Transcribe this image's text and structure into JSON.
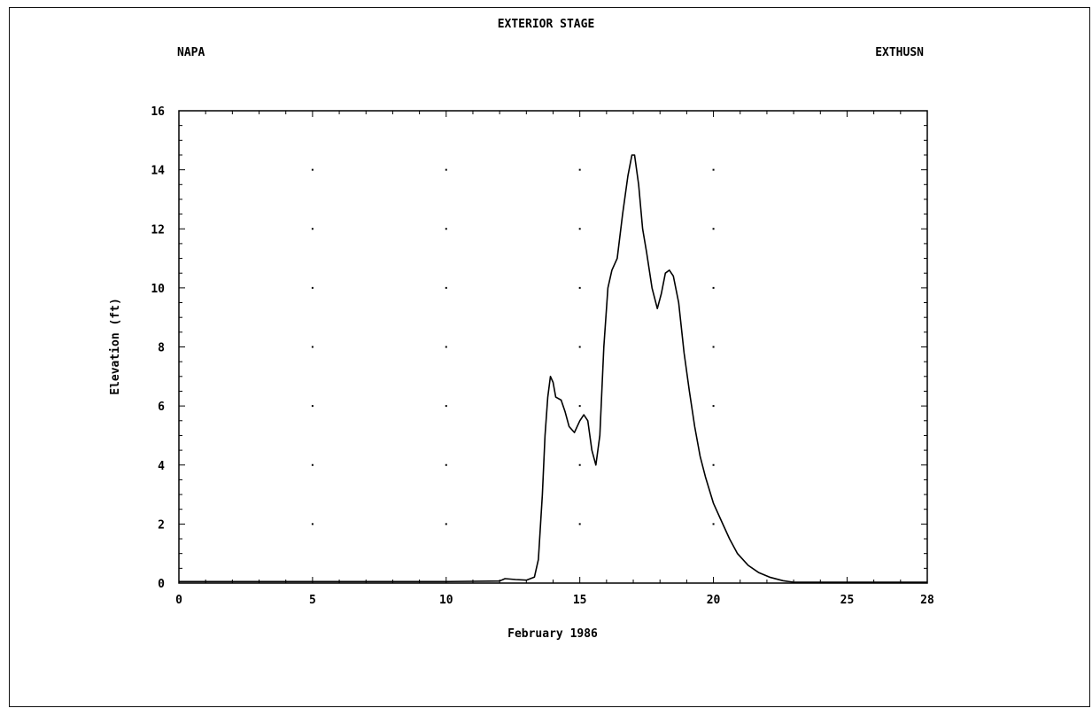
{
  "chart_data": {
    "type": "line",
    "title": "EXTERIOR STAGE",
    "location_label": "NAPA",
    "station_label": "EXTHUSN",
    "xlabel": "February 1986",
    "ylabel": "Elevation (ft)",
    "xlim": [
      0,
      28
    ],
    "ylim": [
      0,
      16
    ],
    "x_ticks": [
      "0",
      "5",
      "10",
      "15",
      "20",
      "25",
      "28"
    ],
    "y_ticks": [
      "0",
      "2",
      "4",
      "6",
      "8",
      "10",
      "12",
      "14",
      "16"
    ],
    "grid": "dotted points at major ticks",
    "series": [
      {
        "line_color": "#000000",
        "x": [
          0,
          5,
          10,
          12.0,
          12.2,
          12.6,
          13.0,
          13.3,
          13.45,
          13.6,
          13.7,
          13.8,
          13.9,
          14.0,
          14.1,
          14.3,
          14.45,
          14.6,
          14.8,
          15.0,
          15.15,
          15.3,
          15.45,
          15.6,
          15.75,
          15.9,
          16.05,
          16.2,
          16.4,
          16.6,
          16.8,
          16.95,
          17.05,
          17.2,
          17.35,
          17.5,
          17.7,
          17.9,
          18.05,
          18.2,
          18.35,
          18.5,
          18.7,
          18.9,
          19.1,
          19.3,
          19.5,
          19.7,
          20.0,
          20.3,
          20.6,
          20.9,
          21.3,
          21.7,
          22.1,
          22.6,
          23.0,
          25,
          28
        ],
        "y": [
          0.05,
          0.05,
          0.05,
          0.07,
          0.15,
          0.12,
          0.1,
          0.2,
          0.8,
          3.0,
          5.0,
          6.3,
          7.0,
          6.8,
          6.3,
          6.2,
          5.8,
          5.3,
          5.1,
          5.5,
          5.7,
          5.5,
          4.5,
          4.0,
          5.0,
          8.0,
          10.0,
          10.6,
          11.0,
          12.5,
          13.8,
          14.5,
          14.5,
          13.5,
          12.0,
          11.2,
          10.0,
          9.3,
          9.8,
          10.5,
          10.6,
          10.4,
          9.5,
          7.8,
          6.5,
          5.3,
          4.3,
          3.6,
          2.7,
          2.1,
          1.5,
          1.0,
          0.6,
          0.35,
          0.2,
          0.08,
          0.03,
          0.03,
          0.03
        ]
      }
    ]
  }
}
